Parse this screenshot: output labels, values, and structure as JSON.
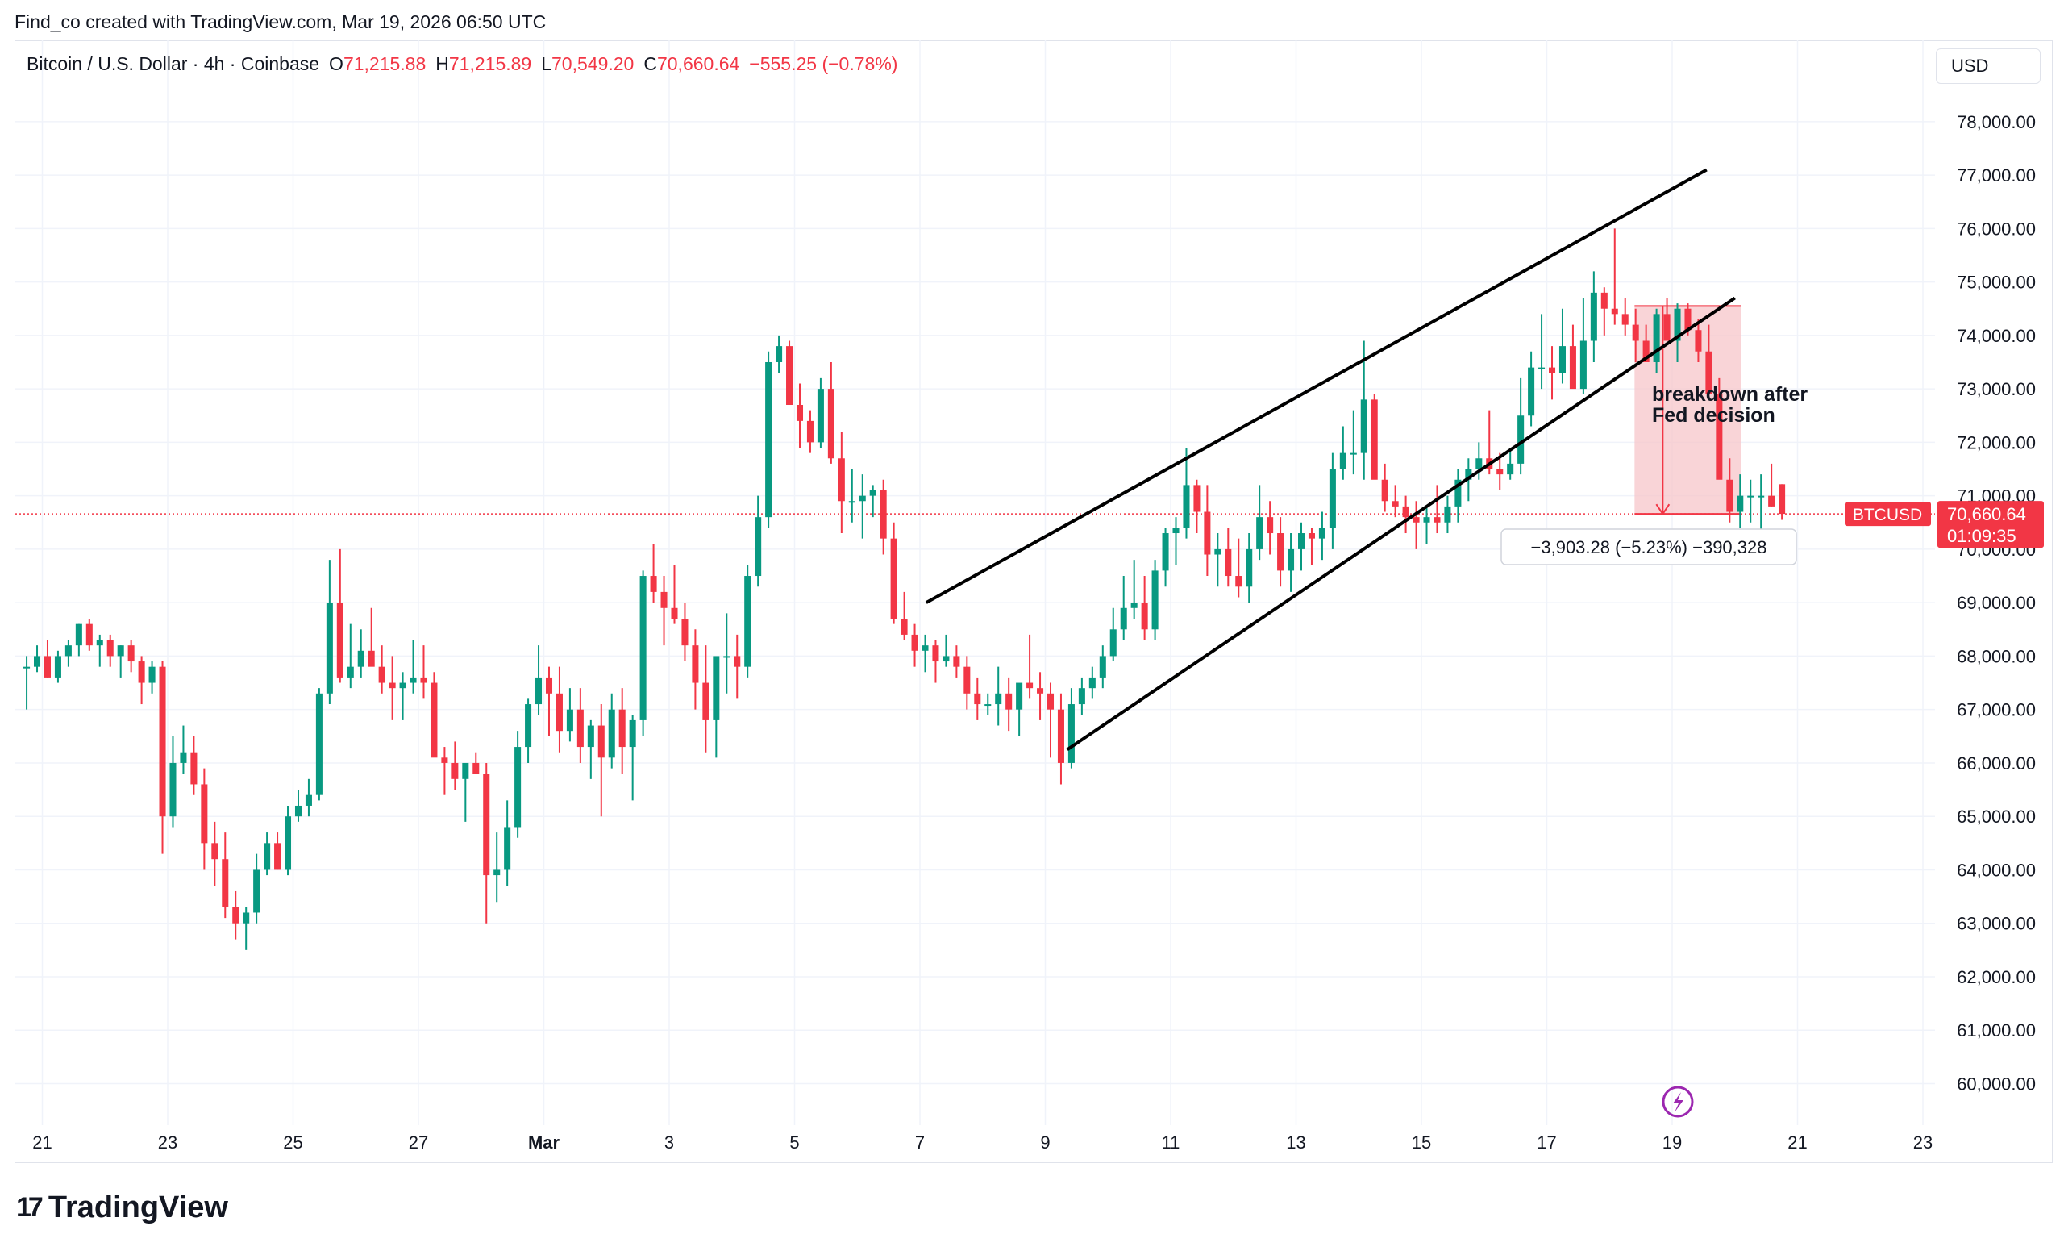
{
  "header": {
    "credit": "Find_co created with TradingView.com, Mar 19, 2026 06:50 UTC"
  },
  "legend": {
    "symbol": "Bitcoin / U.S. Dollar · 4h · Coinbase",
    "open_label": "O",
    "open": "71,215.88",
    "high_label": "H",
    "high": "71,215.89",
    "low_label": "L",
    "low": "70,549.20",
    "close_label": "C",
    "close": "70,660.64",
    "change": "−555.25 (−0.78%)"
  },
  "currency": "USD",
  "price_badge": {
    "symbol": "BTCUSD",
    "price": "70,660.64",
    "countdown": "01:09:35"
  },
  "measure_label": "−3,903.28 (−5.23%) −390,328",
  "annotation": {
    "line1": "breakdown after",
    "line2": "Fed decision"
  },
  "footer": {
    "brand": "TradingView",
    "logo_glyph": "17"
  },
  "colors": {
    "up": "#089981",
    "down": "#f23645",
    "grid": "#f0f3fa",
    "channel": "#000000",
    "zone_fill": "#f7c5c9",
    "text": "#131722"
  },
  "chart_data": {
    "type": "candlestick",
    "title": "Bitcoin / U.S. Dollar · 4h · Coinbase",
    "ylim": [
      59500,
      79000
    ],
    "y_ticks": [
      60000,
      61000,
      62000,
      63000,
      64000,
      65000,
      66000,
      67000,
      68000,
      69000,
      70000,
      71000,
      72000,
      73000,
      74000,
      75000,
      76000,
      77000,
      78000
    ],
    "y_tick_labels": [
      "60,000.00",
      "61,000.00",
      "62,000.00",
      "63,000.00",
      "64,000.00",
      "65,000.00",
      "66,000.00",
      "67,000.00",
      "68,000.00",
      "69,000.00",
      "70,000.00",
      "71,000.00",
      "72,000.00",
      "73,000.00",
      "74,000.00",
      "75,000.00",
      "76,000.00",
      "77,000.00",
      "78,000.00"
    ],
    "x_ticks": [
      {
        "day": 0,
        "label": "21"
      },
      {
        "day": 2,
        "label": "23"
      },
      {
        "day": 4,
        "label": "25"
      },
      {
        "day": 6,
        "label": "27"
      },
      {
        "day": 8,
        "label": "Mar",
        "bold": true
      },
      {
        "day": 10,
        "label": "3"
      },
      {
        "day": 12,
        "label": "5"
      },
      {
        "day": 14,
        "label": "7"
      },
      {
        "day": 16,
        "label": "9"
      },
      {
        "day": 18,
        "label": "11"
      },
      {
        "day": 20,
        "label": "13"
      },
      {
        "day": 22,
        "label": "15"
      },
      {
        "day": 24,
        "label": "17"
      },
      {
        "day": 26,
        "label": "19"
      },
      {
        "day": 28,
        "label": "21"
      },
      {
        "day": 30,
        "label": "23"
      }
    ],
    "x_range_days": [
      -0.45,
      30.45
    ],
    "candle_interval_days": 0.16667,
    "first_candle_day": -0.25,
    "candles_ohlc": [
      [
        67800,
        68000,
        67000,
        67800
      ],
      [
        67800,
        68200,
        67700,
        68000
      ],
      [
        68000,
        68300,
        67600,
        67600
      ],
      [
        67600,
        68100,
        67500,
        68000
      ],
      [
        68000,
        68300,
        67800,
        68200
      ],
      [
        68200,
        68600,
        68000,
        68600
      ],
      [
        68600,
        68700,
        68100,
        68200
      ],
      [
        68200,
        68400,
        67800,
        68300
      ],
      [
        68300,
        68400,
        67800,
        68000
      ],
      [
        68000,
        68200,
        67600,
        68200
      ],
      [
        68200,
        68300,
        67700,
        67900
      ],
      [
        67900,
        68000,
        67100,
        67500
      ],
      [
        67500,
        67900,
        67300,
        67800
      ],
      [
        67800,
        67900,
        64300,
        65000
      ],
      [
        65000,
        66500,
        64800,
        66000
      ],
      [
        66000,
        66700,
        65800,
        66200
      ],
      [
        66200,
        66500,
        65400,
        65600
      ],
      [
        65600,
        65900,
        64000,
        64500
      ],
      [
        64500,
        64900,
        63700,
        64200
      ],
      [
        64200,
        64700,
        63100,
        63300
      ],
      [
        63300,
        63600,
        62700,
        63000
      ],
      [
        63000,
        63300,
        62500,
        63200
      ],
      [
        63200,
        64300,
        63000,
        64000
      ],
      [
        64000,
        64700,
        63900,
        64500
      ],
      [
        64500,
        64700,
        64000,
        64000
      ],
      [
        64000,
        65200,
        63900,
        65000
      ],
      [
        65000,
        65500,
        64900,
        65200
      ],
      [
        65200,
        65700,
        65000,
        65400
      ],
      [
        65400,
        67400,
        65300,
        67300
      ],
      [
        67300,
        69800,
        67100,
        69000
      ],
      [
        69000,
        70000,
        67500,
        67600
      ],
      [
        67600,
        68600,
        67400,
        67800
      ],
      [
        67800,
        68500,
        67600,
        68100
      ],
      [
        68100,
        68900,
        67900,
        67800
      ],
      [
        67800,
        68200,
        67300,
        67500
      ],
      [
        67500,
        68000,
        66800,
        67400
      ],
      [
        67400,
        67700,
        66800,
        67500
      ],
      [
        67500,
        68300,
        67300,
        67600
      ],
      [
        67600,
        68200,
        67200,
        67500
      ],
      [
        67500,
        67700,
        66200,
        66100
      ],
      [
        66100,
        66300,
        65400,
        66000
      ],
      [
        66000,
        66400,
        65500,
        65700
      ],
      [
        65700,
        66000,
        64900,
        66000
      ],
      [
        66000,
        66200,
        65800,
        65800
      ],
      [
        65800,
        66000,
        63000,
        63900
      ],
      [
        63900,
        64700,
        63400,
        64000
      ],
      [
        64000,
        65300,
        63700,
        64800
      ],
      [
        64800,
        66600,
        64600,
        66300
      ],
      [
        66300,
        67200,
        66000,
        67100
      ],
      [
        67100,
        68200,
        66900,
        67600
      ],
      [
        67600,
        67800,
        66500,
        67300
      ],
      [
        67300,
        67800,
        66200,
        66600
      ],
      [
        66600,
        67400,
        66400,
        67000
      ],
      [
        67000,
        67400,
        66000,
        66300
      ],
      [
        66300,
        66800,
        65700,
        66700
      ],
      [
        66700,
        67100,
        65000,
        66100
      ],
      [
        66100,
        67300,
        65900,
        67000
      ],
      [
        67000,
        67400,
        65800,
        66300
      ],
      [
        66300,
        66900,
        65300,
        66800
      ],
      [
        66800,
        69600,
        66500,
        69500
      ],
      [
        69500,
        70100,
        69000,
        69200
      ],
      [
        69200,
        69500,
        68200,
        68900
      ],
      [
        68900,
        69700,
        68600,
        68700
      ],
      [
        68700,
        69000,
        67900,
        68200
      ],
      [
        68200,
        68500,
        67000,
        67500
      ],
      [
        67500,
        68200,
        66200,
        66800
      ],
      [
        66800,
        67700,
        66100,
        68000
      ],
      [
        68000,
        68800,
        67300,
        68000
      ],
      [
        68000,
        68400,
        67200,
        67800
      ],
      [
        67800,
        69700,
        67600,
        69500
      ],
      [
        69500,
        71000,
        69300,
        70600
      ],
      [
        70600,
        73700,
        70400,
        73500
      ],
      [
        73500,
        74000,
        73300,
        73800
      ],
      [
        73800,
        73900,
        73100,
        72700
      ],
      [
        72700,
        73100,
        71900,
        72400
      ],
      [
        72400,
        72600,
        71800,
        72000
      ],
      [
        72000,
        73200,
        71900,
        73000
      ],
      [
        73000,
        73500,
        71600,
        71700
      ],
      [
        71700,
        72200,
        70300,
        70900
      ],
      [
        70900,
        71500,
        70500,
        70900
      ],
      [
        70900,
        71400,
        70200,
        71000
      ],
      [
        71000,
        71200,
        70600,
        71100
      ],
      [
        71100,
        71300,
        69900,
        70200
      ],
      [
        70200,
        70500,
        68600,
        68700
      ],
      [
        68700,
        69200,
        68300,
        68400
      ],
      [
        68400,
        68600,
        67800,
        68100
      ],
      [
        68100,
        68400,
        67700,
        68200
      ],
      [
        68200,
        68300,
        67500,
        67900
      ],
      [
        67900,
        68400,
        67800,
        68000
      ],
      [
        68000,
        68200,
        67600,
        67800
      ],
      [
        67800,
        68000,
        67000,
        67300
      ],
      [
        67300,
        67600,
        66800,
        67100
      ],
      [
        67100,
        67300,
        66900,
        67100
      ],
      [
        67100,
        67800,
        66700,
        67300
      ],
      [
        67300,
        67600,
        66600,
        67000
      ],
      [
        67000,
        67400,
        66500,
        67500
      ],
      [
        67500,
        68400,
        67200,
        67400
      ],
      [
        67400,
        67700,
        66800,
        67300
      ],
      [
        67300,
        67500,
        66100,
        67000
      ],
      [
        67000,
        67300,
        65600,
        66000
      ],
      [
        66000,
        67400,
        65900,
        67100
      ],
      [
        67100,
        67600,
        66900,
        67400
      ],
      [
        67400,
        67800,
        67200,
        67600
      ],
      [
        67600,
        68200,
        67400,
        68000
      ],
      [
        68000,
        68900,
        67900,
        68500
      ],
      [
        68500,
        69500,
        68300,
        68900
      ],
      [
        68900,
        69800,
        68700,
        69000
      ],
      [
        69000,
        69500,
        68300,
        68500
      ],
      [
        68500,
        69800,
        68300,
        69600
      ],
      [
        69600,
        70400,
        69300,
        70300
      ],
      [
        70300,
        70600,
        69700,
        70400
      ],
      [
        70400,
        71900,
        70200,
        71200
      ],
      [
        71200,
        71300,
        70300,
        70700
      ],
      [
        70700,
        71200,
        69500,
        69900
      ],
      [
        69900,
        70300,
        69300,
        70000
      ],
      [
        70000,
        70400,
        69300,
        69500
      ],
      [
        69500,
        70200,
        69100,
        69300
      ],
      [
        69300,
        70300,
        69000,
        70000
      ],
      [
        70000,
        71200,
        69800,
        70600
      ],
      [
        70600,
        70900,
        69900,
        70300
      ],
      [
        70300,
        70600,
        69300,
        69600
      ],
      [
        69600,
        70300,
        69200,
        70000
      ],
      [
        70000,
        70500,
        69600,
        70300
      ],
      [
        70300,
        70400,
        69700,
        70200
      ],
      [
        70200,
        70700,
        69800,
        70400
      ],
      [
        70400,
        71800,
        70000,
        71500
      ],
      [
        71500,
        72300,
        71300,
        71800
      ],
      [
        71800,
        72600,
        71400,
        71800
      ],
      [
        71800,
        73900,
        71300,
        72800
      ],
      [
        72800,
        72900,
        71500,
        71300
      ],
      [
        71300,
        71600,
        70700,
        70900
      ],
      [
        70900,
        71200,
        70600,
        70800
      ],
      [
        70800,
        71000,
        70300,
        70600
      ],
      [
        70600,
        70900,
        70000,
        70500
      ],
      [
        70500,
        70800,
        70100,
        70600
      ],
      [
        70600,
        71200,
        70300,
        70500
      ],
      [
        70500,
        71000,
        70300,
        70800
      ],
      [
        70800,
        71500,
        70500,
        71300
      ],
      [
        71300,
        71700,
        70900,
        71500
      ],
      [
        71500,
        72000,
        71300,
        71700
      ],
      [
        71700,
        72600,
        71400,
        71500
      ],
      [
        71500,
        71800,
        71100,
        71400
      ],
      [
        71400,
        71900,
        71300,
        71600
      ],
      [
        71600,
        73200,
        71400,
        72500
      ],
      [
        72500,
        73700,
        72300,
        73400
      ],
      [
        73400,
        74400,
        73000,
        73400
      ],
      [
        73400,
        73800,
        72800,
        73300
      ],
      [
        73300,
        74500,
        73100,
        73800
      ],
      [
        73800,
        74200,
        73300,
        73000
      ],
      [
        73000,
        74700,
        72900,
        73900
      ],
      [
        73900,
        75200,
        73500,
        74800
      ],
      [
        74800,
        74900,
        74000,
        74500
      ],
      [
        74500,
        76000,
        74200,
        74400
      ],
      [
        74400,
        74700,
        74000,
        74200
      ],
      [
        74200,
        74500,
        73500,
        73900
      ],
      [
        73900,
        74200,
        73600,
        73500
      ],
      [
        73500,
        74500,
        73300,
        74400
      ],
      [
        74400,
        74700,
        74000,
        73900
      ],
      [
        73900,
        74600,
        73500,
        74500
      ],
      [
        74500,
        74600,
        74000,
        74100
      ],
      [
        74100,
        74300,
        73500,
        73700
      ],
      [
        73700,
        74200,
        73400,
        72900
      ],
      [
        72900,
        73200,
        71500,
        71300
      ],
      [
        71300,
        71700,
        70500,
        70700
      ],
      [
        70700,
        71400,
        70400,
        71000
      ],
      [
        71000,
        71300,
        70500,
        71000
      ],
      [
        71000,
        71400,
        70200,
        71000
      ],
      [
        71000,
        71600,
        70800,
        70800
      ],
      [
        71216,
        71216,
        70549,
        70661
      ]
    ],
    "channel_upper": [
      [
        14.1,
        69000
      ],
      [
        26.55,
        77100
      ]
    ],
    "channel_lower": [
      [
        16.35,
        66250
      ],
      [
        27.0,
        74700
      ]
    ],
    "channel_mid_line": [
      [
        16.0,
        66000
      ],
      [
        27.3,
        74800
      ]
    ],
    "zone": {
      "x0": 25.4,
      "x1": 27.1,
      "y_top": 74550,
      "y_bottom": 70660
    },
    "measure": {
      "day": 25.85,
      "from": 74550,
      "to": 70660,
      "change": -3903.28,
      "change_pct": -5.23
    },
    "last_price": 70660.64
  }
}
